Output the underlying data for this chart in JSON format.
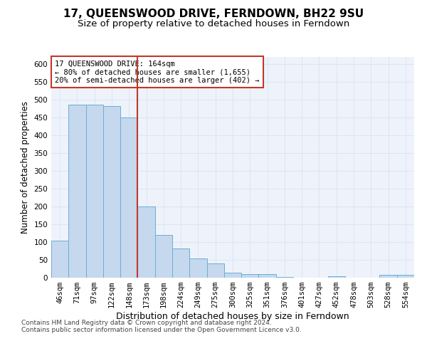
{
  "title": "17, QUEENSWOOD DRIVE, FERNDOWN, BH22 9SU",
  "subtitle": "Size of property relative to detached houses in Ferndown",
  "xlabel": "Distribution of detached houses by size in Ferndown",
  "ylabel": "Number of detached properties",
  "categories": [
    "46sqm",
    "71sqm",
    "97sqm",
    "122sqm",
    "148sqm",
    "173sqm",
    "198sqm",
    "224sqm",
    "249sqm",
    "275sqm",
    "300sqm",
    "325sqm",
    "351sqm",
    "376sqm",
    "401sqm",
    "427sqm",
    "452sqm",
    "478sqm",
    "503sqm",
    "528sqm",
    "554sqm"
  ],
  "values": [
    104,
    487,
    487,
    483,
    450,
    200,
    120,
    83,
    55,
    40,
    15,
    10,
    10,
    3,
    1,
    1,
    5,
    1,
    1,
    8,
    8
  ],
  "bar_color": "#c5d8ed",
  "bar_edge_color": "#6aafd6",
  "vline_x_index": 5,
  "vline_color": "#c0392b",
  "annotation_line1": "17 QUEENSWOOD DRIVE: 164sqm",
  "annotation_line2": "← 80% of detached houses are smaller (1,655)",
  "annotation_line3": "20% of semi-detached houses are larger (402) →",
  "annotation_box_color": "#c0392b",
  "ylim": [
    0,
    620
  ],
  "yticks": [
    0,
    50,
    100,
    150,
    200,
    250,
    300,
    350,
    400,
    450,
    500,
    550,
    600
  ],
  "grid_color": "#dce6f4",
  "footer_line1": "Contains HM Land Registry data © Crown copyright and database right 2024.",
  "footer_line2": "Contains public sector information licensed under the Open Government Licence v3.0.",
  "title_fontsize": 11,
  "subtitle_fontsize": 9.5,
  "xlabel_fontsize": 9,
  "ylabel_fontsize": 8.5,
  "tick_fontsize": 7.5,
  "annotation_fontsize": 7.5,
  "footer_fontsize": 6.5,
  "bg_color": "#ffffff",
  "plot_bg_color": "#eef3fb"
}
